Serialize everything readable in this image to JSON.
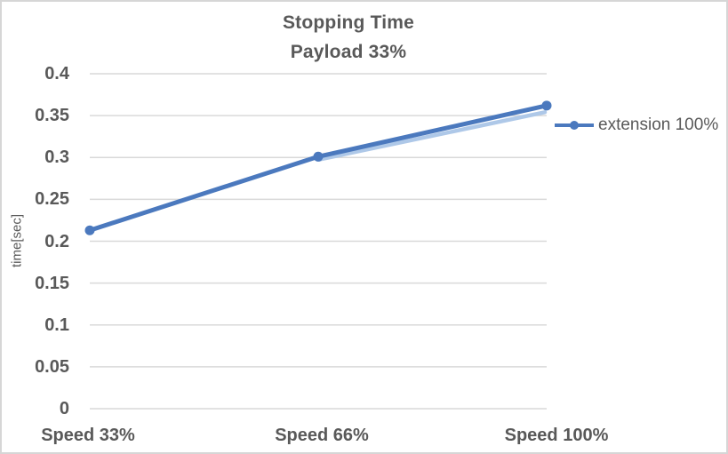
{
  "chart": {
    "background": "#ffffff",
    "border_color": "#d6d6d6"
  },
  "chart_data": {
    "type": "line",
    "title": "Stopping Time",
    "subtitle": "Payload 33%",
    "categories": [
      "Speed 33%",
      "Speed 66%",
      "Speed 100%"
    ],
    "series": [
      {
        "name": "extension 100%",
        "values": [
          0.213,
          0.301,
          0.362
        ],
        "color": "#4b79be",
        "marker": "circle"
      }
    ],
    "xlabel": "",
    "ylabel": "time[sec]",
    "ylim": [
      0,
      0.4
    ],
    "ytick_step": 0.05,
    "ytick_labels": [
      "0.4",
      "0.35",
      "0.3",
      "0.25",
      "0.2",
      "0.15",
      "0.1",
      "0.05",
      "0"
    ],
    "grid": true,
    "gridline_color": "#d9d9d9",
    "legend_position": "right",
    "legend_label": "extension 100%",
    "text_color": "#595959",
    "line_shadow_color": "#aec8e8"
  }
}
